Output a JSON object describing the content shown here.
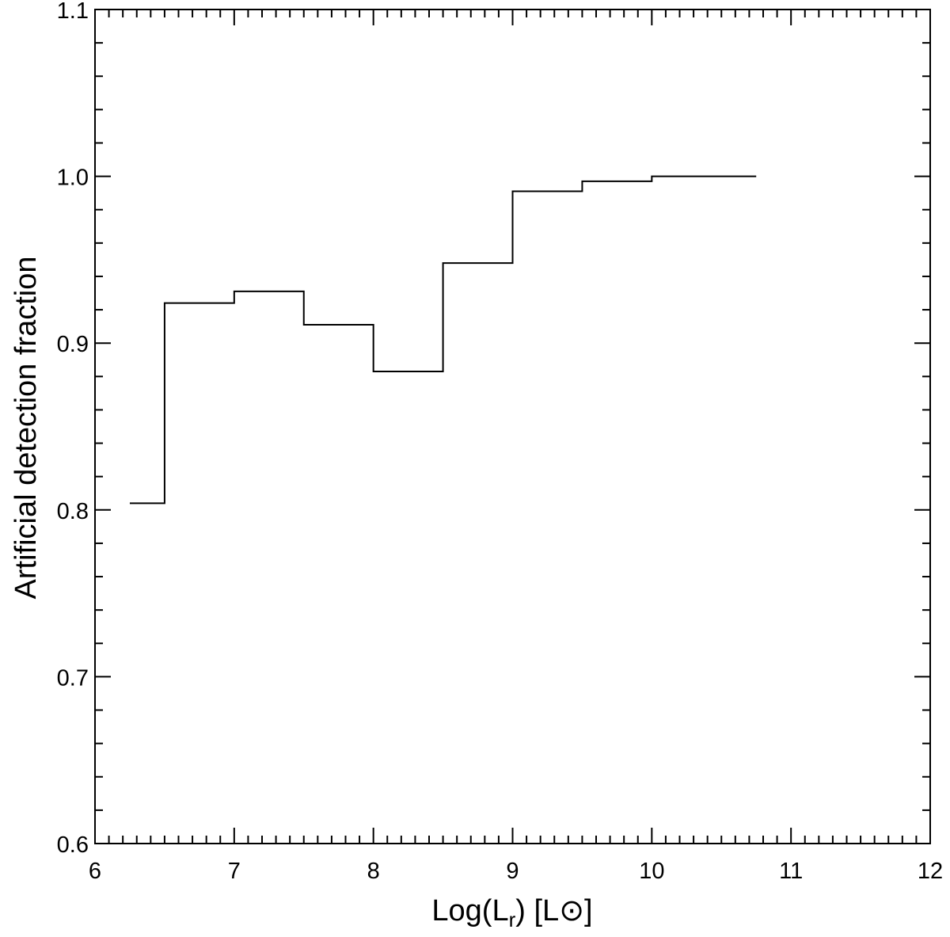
{
  "chart_data": {
    "type": "line",
    "step": true,
    "xlabel": {
      "main": "Log(L",
      "sub": "r",
      "tail": ") [L",
      "symbol": "⊙",
      "close": "]"
    },
    "ylabel": "Artificial detection fraction",
    "xlim": [
      6,
      12
    ],
    "ylim": [
      0.6,
      1.1
    ],
    "xticks": [
      6,
      7,
      8,
      9,
      10,
      11,
      12
    ],
    "xtick_labels": [
      "6",
      "7",
      "8",
      "9",
      "10",
      "11",
      "12"
    ],
    "yticks": [
      0.6,
      0.7,
      0.8,
      0.9,
      1.0,
      1.1
    ],
    "ytick_labels": [
      "0.6",
      "0.7",
      "0.8",
      "0.9",
      "1.0",
      "1.1"
    ],
    "x_minor_step": 0.1,
    "y_minor_step": 0.02,
    "grid": false,
    "bins": [
      {
        "x0": 6.25,
        "x1": 6.5,
        "y": 0.804
      },
      {
        "x0": 6.5,
        "x1": 7.0,
        "y": 0.924
      },
      {
        "x0": 7.0,
        "x1": 7.5,
        "y": 0.931
      },
      {
        "x0": 7.5,
        "x1": 8.0,
        "y": 0.911
      },
      {
        "x0": 8.0,
        "x1": 8.5,
        "y": 0.883
      },
      {
        "x0": 8.5,
        "x1": 9.0,
        "y": 0.948
      },
      {
        "x0": 9.0,
        "x1": 9.5,
        "y": 0.991
      },
      {
        "x0": 9.5,
        "x1": 10.0,
        "y": 0.997
      },
      {
        "x0": 10.0,
        "x1": 10.5,
        "y": 1.0
      },
      {
        "x0": 10.5,
        "x1": 10.75,
        "y": 1.0
      }
    ],
    "line_color": "#000000"
  }
}
